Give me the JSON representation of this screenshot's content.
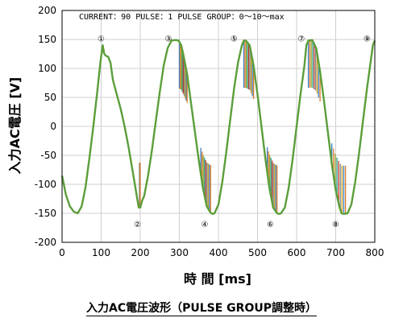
{
  "caption": "入力AC電圧波形（PULSE GROUP調整時）",
  "chart_data": {
    "type": "line",
    "title": "",
    "annotation": "CURRENT：90 PULSE：1 PULSE GROUP：0～10～max",
    "xlabel": "時 間 [ms]",
    "ylabel": "入力AC電圧 [V]",
    "xlim": [
      0,
      800
    ],
    "ylim": [
      -200,
      200
    ],
    "xticks": [
      0,
      100,
      200,
      300,
      400,
      500,
      600,
      700,
      800
    ],
    "yticks": [
      -200,
      -150,
      -100,
      -50,
      0,
      50,
      100,
      150,
      200
    ],
    "grid": true,
    "peak_markers": [
      {
        "label": "①",
        "x": 100,
        "y": 152
      },
      {
        "label": "②",
        "x": 193,
        "y": -168
      },
      {
        "label": "③",
        "x": 272,
        "y": 152
      },
      {
        "label": "④",
        "x": 365,
        "y": -168
      },
      {
        "label": "⑤",
        "x": 440,
        "y": 152
      },
      {
        "label": "⑥",
        "x": 533,
        "y": -168
      },
      {
        "label": "⑦",
        "x": 612,
        "y": 152
      },
      {
        "label": "⑧",
        "x": 700,
        "y": -168
      },
      {
        "label": "⑨",
        "x": 780,
        "y": 152
      }
    ],
    "series": [
      {
        "color": "#5b9e3a",
        "x": [
          0,
          10,
          20,
          30,
          40,
          50,
          60,
          70,
          80,
          90,
          98,
          104,
          108,
          112,
          118,
          124,
          130,
          140,
          150,
          160,
          170,
          180,
          190,
          196,
          200,
          205,
          210,
          220,
          230,
          240,
          250,
          260,
          270,
          280,
          290,
          298,
          305,
          310,
          320,
          330,
          340,
          350,
          360,
          370,
          380,
          385,
          390,
          400,
          410,
          420,
          430,
          440,
          450,
          460,
          465,
          470,
          480,
          490,
          500,
          510,
          520,
          530,
          540,
          550,
          555,
          560,
          570,
          580,
          590,
          600,
          610,
          620,
          625,
          630,
          640,
          650,
          660,
          670,
          680,
          690,
          700,
          710,
          715,
          720,
          730,
          740,
          750,
          760,
          770,
          780,
          790,
          795,
          800
        ],
        "y": [
          -85,
          -118,
          -138,
          -147,
          -150,
          -138,
          -105,
          -55,
          0,
          60,
          110,
          140,
          125,
          122,
          120,
          110,
          80,
          55,
          30,
          0,
          -35,
          -75,
          -115,
          -140,
          -140,
          -128,
          -120,
          -85,
          -40,
          10,
          60,
          105,
          135,
          148,
          149,
          148,
          140,
          125,
          90,
          40,
          -10,
          -60,
          -105,
          -138,
          -149,
          -151,
          -150,
          -135,
          -95,
          -45,
          10,
          65,
          110,
          140,
          148,
          148,
          140,
          105,
          55,
          0,
          -55,
          -105,
          -140,
          -150,
          -151,
          -150,
          -140,
          -105,
          -55,
          0,
          55,
          105,
          140,
          148,
          149,
          135,
          95,
          45,
          -10,
          -65,
          -110,
          -140,
          -150,
          -151,
          -150,
          -135,
          -95,
          -45,
          10,
          65,
          115,
          140,
          148
        ]
      }
    ]
  }
}
